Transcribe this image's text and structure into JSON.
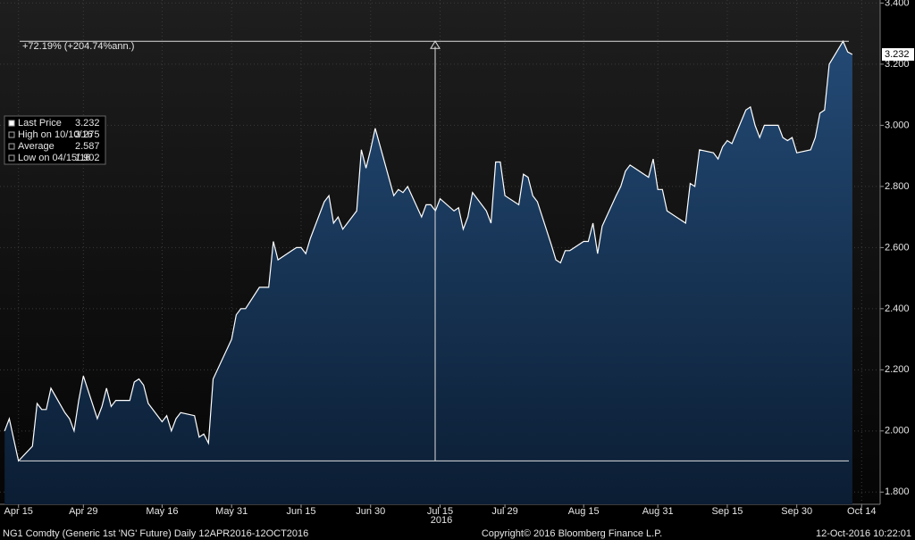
{
  "chart_data": {
    "type": "area",
    "annotation": "+72.19% (+204.74%ann.)",
    "year_label": "2016",
    "last_value_tag": 3.232,
    "legend_items": [
      {
        "label": "Last Price",
        "value": 3.232
      },
      {
        "label": "High on 10/10/16",
        "value": 3.275
      },
      {
        "label": "Average",
        "value": 2.587
      },
      {
        "label": "Low on 04/15/16",
        "value": 1.902
      }
    ],
    "footer_left": "NG1 Comdty (Generic 1st 'NG' Future)  Daily 12APR2016-12OCT2016",
    "footer_center": "Copyright© 2016 Bloomberg Finance L.P.",
    "footer_right": "12-Oct-2016 10:22:01",
    "color": "#ffffff",
    "fill": "#1b3c62",
    "grid": true,
    "xlim": [
      "2016-04-11",
      "2016-10-18"
    ],
    "ylim": [
      1.76,
      3.41
    ],
    "yticks": [
      {
        "value": 1.8,
        "label": "1.800"
      },
      {
        "value": 2.0,
        "label": "2.000"
      },
      {
        "value": 2.2,
        "label": "2.200"
      },
      {
        "value": 2.4,
        "label": "2.400"
      },
      {
        "value": 2.6,
        "label": "2.600"
      },
      {
        "value": 2.8,
        "label": "2.800"
      },
      {
        "value": 3.0,
        "label": "3.000"
      },
      {
        "value": 3.2,
        "label": "3.200"
      },
      {
        "value": 3.4,
        "label": "3.400"
      }
    ],
    "xticks": [
      {
        "value": "2016-04-15",
        "label": "Apr 15"
      },
      {
        "value": "2016-04-29",
        "label": "Apr 29"
      },
      {
        "value": "2016-05-16",
        "label": "May 16"
      },
      {
        "value": "2016-05-31",
        "label": "May 31"
      },
      {
        "value": "2016-06-15",
        "label": "Jun 15"
      },
      {
        "value": "2016-06-30",
        "label": "Jun 30"
      },
      {
        "value": "2016-07-15",
        "label": "Jul 15"
      },
      {
        "value": "2016-07-29",
        "label": "Jul 29"
      },
      {
        "value": "2016-08-15",
        "label": "Aug 15"
      },
      {
        "value": "2016-08-31",
        "label": "Aug 31"
      },
      {
        "value": "2016-09-15",
        "label": "Sep 15"
      },
      {
        "value": "2016-09-30",
        "label": "Sep 30"
      },
      {
        "value": "2016-10-14",
        "label": "Oct 14"
      }
    ],
    "x": [
      "2016-04-12",
      "2016-04-13",
      "2016-04-14",
      "2016-04-15",
      "2016-04-18",
      "2016-04-19",
      "2016-04-20",
      "2016-04-21",
      "2016-04-22",
      "2016-04-25",
      "2016-04-26",
      "2016-04-27",
      "2016-04-28",
      "2016-04-29",
      "2016-05-02",
      "2016-05-03",
      "2016-05-04",
      "2016-05-05",
      "2016-05-06",
      "2016-05-09",
      "2016-05-10",
      "2016-05-11",
      "2016-05-12",
      "2016-05-13",
      "2016-05-16",
      "2016-05-17",
      "2016-05-18",
      "2016-05-19",
      "2016-05-20",
      "2016-05-23",
      "2016-05-24",
      "2016-05-25",
      "2016-05-26",
      "2016-05-27",
      "2016-05-31",
      "2016-06-01",
      "2016-06-02",
      "2016-06-03",
      "2016-06-06",
      "2016-06-07",
      "2016-06-08",
      "2016-06-09",
      "2016-06-10",
      "2016-06-13",
      "2016-06-14",
      "2016-06-15",
      "2016-06-16",
      "2016-06-17",
      "2016-06-20",
      "2016-06-21",
      "2016-06-22",
      "2016-06-23",
      "2016-06-24",
      "2016-06-27",
      "2016-06-28",
      "2016-06-29",
      "2016-06-30",
      "2016-07-01",
      "2016-07-05",
      "2016-07-06",
      "2016-07-07",
      "2016-07-08",
      "2016-07-11",
      "2016-07-12",
      "2016-07-13",
      "2016-07-14",
      "2016-07-15",
      "2016-07-18",
      "2016-07-19",
      "2016-07-20",
      "2016-07-21",
      "2016-07-22",
      "2016-07-25",
      "2016-07-26",
      "2016-07-27",
      "2016-07-28",
      "2016-07-29",
      "2016-08-01",
      "2016-08-02",
      "2016-08-03",
      "2016-08-04",
      "2016-08-05",
      "2016-08-08",
      "2016-08-09",
      "2016-08-10",
      "2016-08-11",
      "2016-08-12",
      "2016-08-15",
      "2016-08-16",
      "2016-08-17",
      "2016-08-18",
      "2016-08-19",
      "2016-08-22",
      "2016-08-23",
      "2016-08-24",
      "2016-08-25",
      "2016-08-26",
      "2016-08-29",
      "2016-08-30",
      "2016-08-31",
      "2016-09-01",
      "2016-09-02",
      "2016-09-06",
      "2016-09-07",
      "2016-09-08",
      "2016-09-09",
      "2016-09-12",
      "2016-09-13",
      "2016-09-14",
      "2016-09-15",
      "2016-09-16",
      "2016-09-19",
      "2016-09-20",
      "2016-09-21",
      "2016-09-22",
      "2016-09-23",
      "2016-09-26",
      "2016-09-27",
      "2016-09-28",
      "2016-09-29",
      "2016-09-30",
      "2016-10-03",
      "2016-10-04",
      "2016-10-05",
      "2016-10-06",
      "2016-10-07",
      "2016-10-10",
      "2016-10-11",
      "2016-10-12"
    ],
    "values": [
      2.0,
      2.04,
      1.97,
      1.902,
      1.95,
      2.09,
      2.07,
      2.07,
      2.14,
      2.06,
      2.04,
      2.0,
      2.1,
      2.18,
      2.04,
      2.08,
      2.14,
      2.08,
      2.1,
      2.1,
      2.16,
      2.17,
      2.15,
      2.09,
      2.03,
      2.05,
      2.0,
      2.04,
      2.06,
      2.05,
      1.98,
      1.99,
      1.96,
      2.17,
      2.3,
      2.38,
      2.4,
      2.4,
      2.47,
      2.47,
      2.47,
      2.62,
      2.56,
      2.59,
      2.6,
      2.6,
      2.58,
      2.63,
      2.75,
      2.77,
      2.68,
      2.7,
      2.66,
      2.72,
      2.92,
      2.86,
      2.92,
      2.99,
      2.77,
      2.79,
      2.78,
      2.8,
      2.7,
      2.74,
      2.74,
      2.72,
      2.76,
      2.72,
      2.73,
      2.66,
      2.7,
      2.78,
      2.72,
      2.68,
      2.88,
      2.88,
      2.77,
      2.74,
      2.84,
      2.83,
      2.77,
      2.75,
      2.61,
      2.56,
      2.55,
      2.59,
      2.59,
      2.62,
      2.62,
      2.68,
      2.58,
      2.67,
      2.77,
      2.8,
      2.85,
      2.87,
      2.86,
      2.83,
      2.89,
      2.79,
      2.79,
      2.72,
      2.68,
      2.81,
      2.8,
      2.92,
      2.91,
      2.89,
      2.93,
      2.95,
      2.94,
      3.05,
      3.06,
      3.0,
      2.96,
      3.0,
      3.0,
      2.96,
      2.95,
      2.96,
      2.91,
      2.92,
      2.96,
      3.04,
      3.05,
      3.2,
      3.275,
      3.24,
      3.232
    ]
  }
}
